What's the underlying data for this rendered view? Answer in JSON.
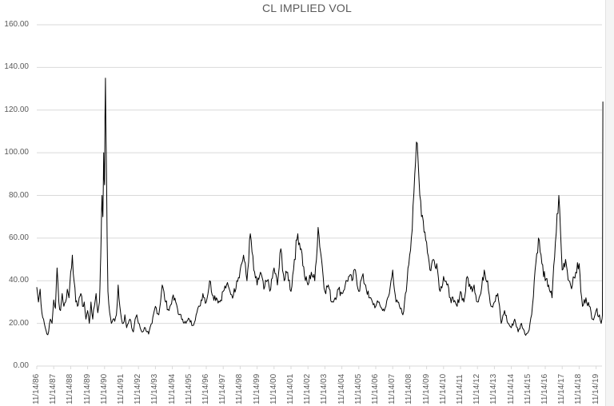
{
  "chart_data": {
    "type": "line",
    "title": "CL IMPLIED VOL",
    "xlabel": "",
    "ylabel": "",
    "ylim": [
      0,
      160
    ],
    "yticks": [
      "0.00",
      "20.00",
      "40.00",
      "60.00",
      "80.00",
      "100.00",
      "120.00",
      "140.00",
      "160.00"
    ],
    "xticks": [
      "11/14/86",
      "11/14/87",
      "11/14/88",
      "11/14/89",
      "11/14/90",
      "11/14/91",
      "11/14/92",
      "11/14/93",
      "11/14/94",
      "11/14/95",
      "11/14/96",
      "11/14/97",
      "11/14/98",
      "11/14/99",
      "11/14/00",
      "11/14/01",
      "11/14/02",
      "11/14/03",
      "11/14/04",
      "11/14/05",
      "11/14/06",
      "11/14/07",
      "11/14/08",
      "11/14/09",
      "11/14/10",
      "11/14/11",
      "11/14/12",
      "11/14/13",
      "11/14/14",
      "11/14/15",
      "11/14/16",
      "11/14/17",
      "11/14/18",
      "11/14/19"
    ],
    "grid": true,
    "legend": null,
    "series": [
      {
        "name": "CL Implied Vol",
        "color": "#000000",
        "x_years_since_start": [
          0.0,
          0.1,
          0.2,
          0.3,
          0.4,
          0.5,
          0.6,
          0.7,
          0.8,
          0.9,
          1.0,
          1.1,
          1.2,
          1.3,
          1.4,
          1.5,
          1.6,
          1.7,
          1.8,
          1.9,
          2.0,
          2.1,
          2.2,
          2.3,
          2.4,
          2.5,
          2.6,
          2.7,
          2.8,
          2.9,
          3.0,
          3.1,
          3.2,
          3.3,
          3.4,
          3.5,
          3.6,
          3.7,
          3.75,
          3.8,
          3.85,
          3.9,
          3.95,
          4.0,
          4.05,
          4.1,
          4.15,
          4.2,
          4.3,
          4.4,
          4.5,
          4.6,
          4.7,
          4.8,
          4.9,
          5.0,
          5.1,
          5.2,
          5.3,
          5.4,
          5.5,
          5.6,
          5.7,
          5.8,
          5.9,
          6.0,
          6.2,
          6.4,
          6.6,
          6.8,
          7.0,
          7.2,
          7.4,
          7.6,
          7.8,
          8.0,
          8.2,
          8.4,
          8.6,
          8.8,
          9.0,
          9.2,
          9.4,
          9.6,
          9.8,
          10.0,
          10.2,
          10.4,
          10.6,
          10.8,
          11.0,
          11.2,
          11.4,
          11.6,
          11.8,
          12.0,
          12.2,
          12.4,
          12.6,
          12.8,
          13.0,
          13.2,
          13.4,
          13.6,
          13.8,
          14.0,
          14.2,
          14.4,
          14.6,
          14.8,
          15.0,
          15.2,
          15.4,
          15.6,
          15.8,
          16.0,
          16.2,
          16.4,
          16.6,
          16.8,
          17.0,
          17.2,
          17.4,
          17.6,
          17.8,
          18.0,
          18.2,
          18.4,
          18.6,
          18.8,
          19.0,
          19.2,
          19.4,
          19.6,
          19.8,
          20.0,
          20.2,
          20.4,
          20.6,
          20.8,
          21.0,
          21.2,
          21.4,
          21.6,
          21.7,
          21.8,
          21.9,
          22.0,
          22.1,
          22.2,
          22.3,
          22.4,
          22.6,
          22.8,
          23.0,
          23.2,
          23.4,
          23.6,
          23.8,
          24.0,
          24.2,
          24.4,
          24.6,
          24.8,
          25.0,
          25.2,
          25.4,
          25.6,
          25.8,
          26.0,
          26.2,
          26.4,
          26.6,
          26.8,
          27.0,
          27.2,
          27.4,
          27.6,
          27.8,
          28.0,
          28.2,
          28.4,
          28.6,
          28.8,
          29.0,
          29.2,
          29.4,
          29.6,
          29.8,
          30.0,
          30.2,
          30.4,
          30.6,
          30.8,
          31.0,
          31.2,
          31.4,
          31.6,
          31.8,
          32.0,
          32.1,
          32.2,
          32.4,
          32.6,
          32.8,
          33.0,
          33.2,
          33.3,
          33.35,
          33.4
        ],
        "values": [
          37,
          30,
          36,
          25,
          22,
          18,
          15,
          16,
          22,
          20,
          31,
          27,
          46,
          30,
          26,
          34,
          28,
          30,
          36,
          32,
          44,
          52,
          40,
          30,
          28,
          32,
          34,
          28,
          30,
          22,
          26,
          20,
          30,
          22,
          28,
          34,
          25,
          30,
          45,
          62,
          80,
          70,
          100,
          85,
          135,
          100,
          60,
          35,
          25,
          20,
          22,
          21,
          24,
          38,
          28,
          22,
          20,
          24,
          18,
          20,
          22,
          18,
          16,
          22,
          24,
          20,
          16,
          18,
          15,
          20,
          28,
          24,
          38,
          30,
          26,
          32,
          30,
          24,
          22,
          20,
          22,
          19,
          24,
          28,
          34,
          30,
          40,
          33,
          32,
          30,
          35,
          38,
          35,
          33,
          40,
          45,
          52,
          40,
          62,
          45,
          38,
          44,
          36,
          40,
          36,
          46,
          38,
          55,
          40,
          44,
          35,
          50,
          62,
          55,
          42,
          38,
          44,
          40,
          65,
          50,
          35,
          38,
          30,
          32,
          36,
          34,
          38,
          42,
          40,
          45,
          35,
          42,
          38,
          32,
          30,
          28,
          30,
          26,
          28,
          34,
          45,
          30,
          28,
          24,
          30,
          35,
          46,
          52,
          60,
          75,
          90,
          105,
          80,
          68,
          58,
          45,
          50,
          48,
          35,
          42,
          38,
          32,
          30,
          28,
          35,
          30,
          42,
          36,
          38,
          30,
          34,
          45,
          40,
          28,
          30,
          34,
          20,
          26,
          20,
          18,
          22,
          16,
          20,
          15,
          16,
          24,
          45,
          60,
          48,
          40,
          38,
          32,
          58,
          80,
          45,
          50,
          40,
          38,
          44,
          48,
          35,
          28,
          32,
          28,
          22,
          26,
          24,
          20,
          22,
          25,
          24,
          26,
          58,
          40,
          32,
          26,
          45,
          28,
          35,
          40,
          30,
          25,
          124,
          124
        ]
      }
    ]
  },
  "colors": {
    "line": "#000000",
    "grid": "#d9d9d9",
    "axis_text": "#595959",
    "title_text": "#595959",
    "background": "#ffffff"
  }
}
